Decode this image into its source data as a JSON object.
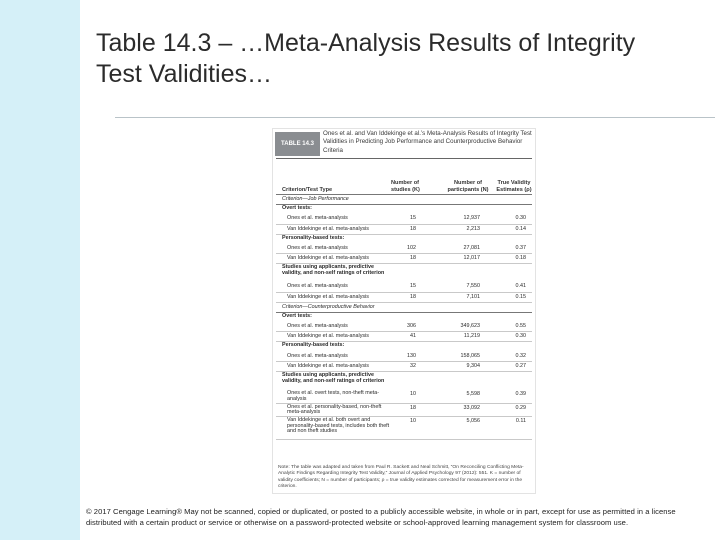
{
  "slide": {
    "title_line1": "Table 14.3 – …Meta-Analysis Results of Integrity",
    "title_line2": "Test Validities…"
  },
  "table": {
    "badge": "TABLE 14.3",
    "caption": "Ones et al. and Van Iddekinge et al.’s Meta-Analysis Results of Integrity Test Validities in Predicting Job Performance and Counterproductive Behavior Criteria",
    "columns": {
      "criterion": "Criterion/Test Type",
      "k": "Number of studies (K)",
      "n": "Number of participants (N)",
      "validity": "True Validity Estimates (ρ)"
    },
    "rows": [
      {
        "kind": "crit",
        "label": "Criterion—Job Performance"
      },
      {
        "kind": "grp",
        "label": "Overt tests:"
      },
      {
        "kind": "item",
        "label": "Ones et al. meta-analysis",
        "k": "15",
        "n": "12,937",
        "v": "0.30"
      },
      {
        "kind": "item",
        "label": "Van Iddekinge et al. meta-analysis",
        "k": "18",
        "n": "2,213",
        "v": "0.14"
      },
      {
        "kind": "grp",
        "label": "Personality-based tests:"
      },
      {
        "kind": "item",
        "label": "Ones et al. meta-analysis",
        "k": "102",
        "n": "27,081",
        "v": "0.37"
      },
      {
        "kind": "item",
        "label": "Van Iddekinge et al. meta-analysis",
        "k": "18",
        "n": "12,017",
        "v": "0.18"
      },
      {
        "kind": "grp",
        "label": "Studies using applicants, predictive validity, and non-self ratings of criterion"
      },
      {
        "kind": "item",
        "label": "Ones et al. meta-analysis",
        "k": "15",
        "n": "7,550",
        "v": "0.41"
      },
      {
        "kind": "item",
        "label": "Van Iddekinge et al. meta-analysis",
        "k": "18",
        "n": "7,101",
        "v": "0.15"
      },
      {
        "kind": "crit",
        "label": "Criterion—Counterproductive Behavior"
      },
      {
        "kind": "grp",
        "label": "Overt tests:"
      },
      {
        "kind": "item",
        "label": "Ones et al. meta-analysis",
        "k": "306",
        "n": "349,623",
        "v": "0.55"
      },
      {
        "kind": "item",
        "label": "Van Iddekinge et al. meta-analysis",
        "k": "41",
        "n": "11,219",
        "v": "0.30"
      },
      {
        "kind": "grp",
        "label": "Personality-based tests:"
      },
      {
        "kind": "item",
        "label": "Ones et al. meta-analysis",
        "k": "130",
        "n": "158,065",
        "v": "0.32"
      },
      {
        "kind": "item",
        "label": "Van Iddekinge et al. meta-analysis",
        "k": "32",
        "n": "9,304",
        "v": "0.27"
      },
      {
        "kind": "grp",
        "label": "Studies using applicants, predictive validity, and non-self ratings of criterion"
      },
      {
        "kind": "item",
        "label": "Ones et al. overt tests, non-theft meta-analysis",
        "k": "10",
        "n": "5,598",
        "v": "0.39",
        "h": 2
      },
      {
        "kind": "item",
        "label": "Ones et al. personality-based, non-theft meta-analysis",
        "k": "18",
        "n": "33,092",
        "v": "0.29",
        "h": 2
      },
      {
        "kind": "item",
        "label": "Van Iddekinge et al. both overt and personality-based tests, includes both theft and non theft studies",
        "k": "10",
        "n": "5,056",
        "v": "0.11",
        "h": 4
      }
    ],
    "note": "Note: The table was adapted and taken from Paul R. Sackett and Neal Schmitt, “On Reconciling Conflicting Meta-Analytic Findings Regarding Integrity Test Validity,” Journal of Applied Psychology 97 (2012): 551. K = number of validity coefficients; N = number of participants; ρ = true validity estimates corrected for measurement error in the criterion."
  },
  "footer": {
    "copyright": "© 2017 Cengage Learning® May not be scanned, copied or duplicated, or posted to a publicly accessible website, in whole or in part, except for use as permitted in a license distributed with a certain product or service or otherwise on a password-protected website or school-approved learning management system for classroom use."
  }
}
